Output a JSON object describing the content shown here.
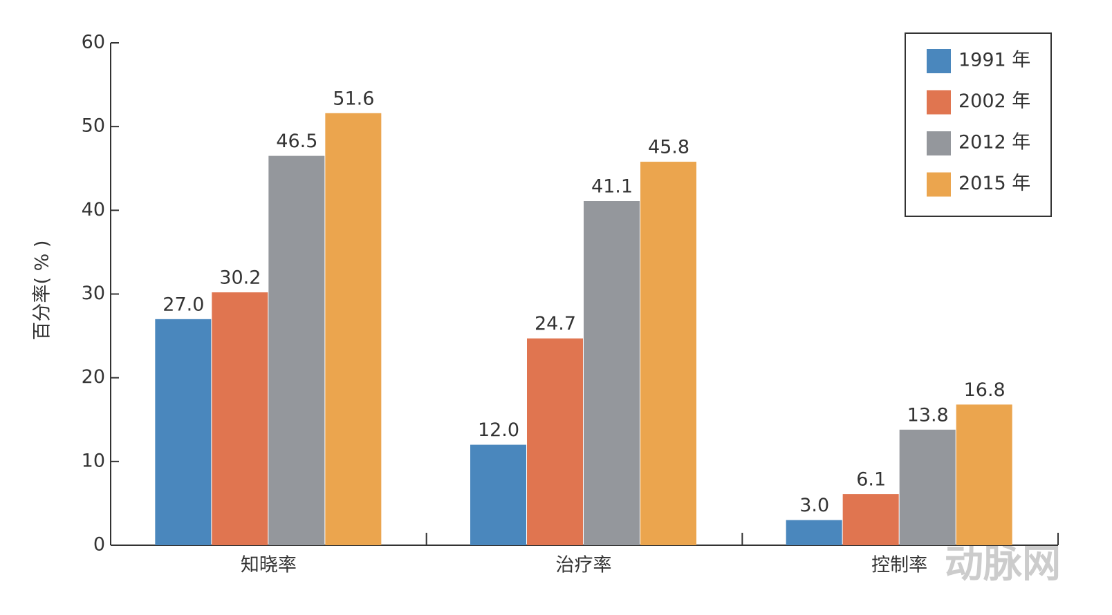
{
  "chart_data": {
    "type": "bar",
    "y_label": "百分率( % )",
    "categories": [
      "知晓率",
      "治疗率",
      "控制率"
    ],
    "series": [
      {
        "name": "1991 年",
        "color": "#4a87bd",
        "values": [
          27.0,
          12.0,
          3.0
        ],
        "value_labels": [
          "27.0",
          "12.0",
          "3.0"
        ]
      },
      {
        "name": "2002 年",
        "color": "#e07550",
        "values": [
          30.2,
          24.7,
          6.1
        ],
        "value_labels": [
          "30.2",
          "24.7",
          "6.1"
        ]
      },
      {
        "name": "2012 年",
        "color": "#94979c",
        "values": [
          46.5,
          41.1,
          13.8
        ],
        "value_labels": [
          "46.5",
          "41.1",
          "13.8"
        ]
      },
      {
        "name": "2015 年",
        "color": "#eba54e",
        "values": [
          51.6,
          45.8,
          16.8
        ],
        "value_labels": [
          "51.6",
          "45.8",
          "16.8"
        ]
      }
    ],
    "ylim": [
      0,
      60
    ],
    "yticks": [
      0,
      10,
      20,
      30,
      40,
      50,
      60
    ],
    "grid": false,
    "legend": "upper right",
    "watermark": "动脉网"
  }
}
